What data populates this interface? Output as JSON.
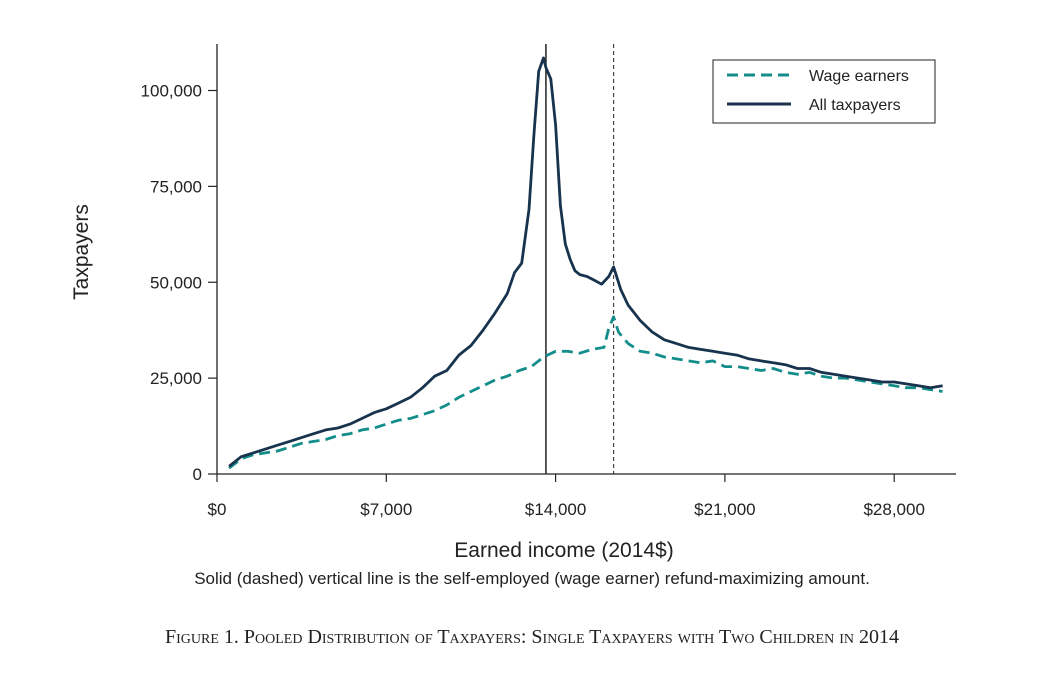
{
  "figure_caption": "Figure 1. Pooled Distribution of Taxpayers: Single Taxpayers with Two Children in 2014",
  "colors": {
    "wage_earners": "#138d8a",
    "all_taxpayers": "#17334d",
    "axis": "#222222"
  },
  "chart_data": {
    "type": "line",
    "title": "",
    "xlabel": "Earned income (2014$)",
    "ylabel": "Taxpayers",
    "note": "Solid (dashed) vertical line is the self-employed (wage earner) refund-maximizing amount.",
    "xlim": [
      0,
      30500
    ],
    "ylim": [
      0,
      112000
    ],
    "x_ticks": [
      {
        "value": 0,
        "label": "$0"
      },
      {
        "value": 7000,
        "label": "$7,000"
      },
      {
        "value": 14000,
        "label": "$14,000"
      },
      {
        "value": 21000,
        "label": "$21,000"
      },
      {
        "value": 28000,
        "label": "$28,000"
      }
    ],
    "y_ticks": [
      {
        "value": 0,
        "label": "0"
      },
      {
        "value": 25000,
        "label": "25,000"
      },
      {
        "value": 50000,
        "label": "50,000"
      },
      {
        "value": 75000,
        "label": "75,000"
      },
      {
        "value": 100000,
        "label": "100,000"
      }
    ],
    "grid": false,
    "legend_position": "top-right",
    "vlines": [
      {
        "x": 13600,
        "style": "solid",
        "meaning": "self-employed refund-maximizing amount"
      },
      {
        "x": 16400,
        "style": "dashed",
        "meaning": "wage earner refund-maximizing amount"
      }
    ],
    "series": [
      {
        "name": "Wage earners",
        "style": "dashed",
        "x": [
          500,
          1000,
          1500,
          2000,
          2500,
          3000,
          3500,
          4000,
          4500,
          5000,
          5500,
          6000,
          6500,
          7000,
          7500,
          8000,
          8500,
          9000,
          9500,
          10000,
          10500,
          11000,
          11500,
          12000,
          12500,
          13000,
          13500,
          14000,
          14500,
          15000,
          15500,
          16000,
          16200,
          16400,
          16600,
          17000,
          17500,
          18000,
          18500,
          19000,
          19500,
          20000,
          20500,
          21000,
          21500,
          22000,
          22500,
          23000,
          23500,
          24000,
          24500,
          25000,
          25500,
          26000,
          26500,
          27000,
          27500,
          28000,
          28500,
          29000,
          29500,
          30000
        ],
        "y": [
          1500,
          4000,
          5000,
          5500,
          6000,
          7000,
          8000,
          8500,
          9000,
          10000,
          10500,
          11500,
          12000,
          13000,
          14000,
          14500,
          15500,
          16500,
          18000,
          20000,
          21500,
          23000,
          24500,
          25500,
          27000,
          28000,
          30500,
          32000,
          32000,
          31500,
          32500,
          33000,
          38000,
          41000,
          37000,
          34000,
          32000,
          31500,
          30500,
          30000,
          29500,
          29000,
          29500,
          28000,
          28000,
          27500,
          27000,
          27500,
          26500,
          26000,
          26500,
          25500,
          25000,
          25000,
          24500,
          24000,
          23500,
          23000,
          22500,
          22500,
          22000,
          21500
        ]
      },
      {
        "name": "All taxpayers",
        "style": "solid",
        "x": [
          500,
          1000,
          1500,
          2000,
          2500,
          3000,
          3500,
          4000,
          4500,
          5000,
          5500,
          6000,
          6500,
          7000,
          7500,
          8000,
          8500,
          9000,
          9500,
          10000,
          10500,
          11000,
          11500,
          12000,
          12300,
          12600,
          12900,
          13100,
          13300,
          13500,
          13600,
          13800,
          14000,
          14200,
          14400,
          14600,
          14800,
          15000,
          15300,
          15600,
          15900,
          16200,
          16400,
          16700,
          17000,
          17500,
          18000,
          18500,
          19000,
          19500,
          20000,
          20500,
          21000,
          21500,
          22000,
          22500,
          23000,
          23500,
          24000,
          24500,
          25000,
          25500,
          26000,
          26500,
          27000,
          27500,
          28000,
          28500,
          29000,
          29500,
          30000
        ],
        "y": [
          2000,
          4500,
          5500,
          6500,
          7500,
          8500,
          9500,
          10500,
          11500,
          12000,
          13000,
          14500,
          16000,
          17000,
          18500,
          20000,
          22500,
          25500,
          27000,
          31000,
          33500,
          37500,
          42000,
          47000,
          52500,
          55000,
          69000,
          88000,
          105000,
          108500,
          106000,
          103000,
          91000,
          70000,
          60000,
          56000,
          53000,
          52000,
          51500,
          50500,
          49500,
          51500,
          54000,
          48000,
          44000,
          40000,
          37000,
          35000,
          34000,
          33000,
          32500,
          32000,
          31500,
          31000,
          30000,
          29500,
          29000,
          28500,
          27500,
          27500,
          26500,
          26000,
          25500,
          25000,
          24500,
          24000,
          24000,
          23500,
          23000,
          22500,
          23000
        ]
      }
    ]
  }
}
